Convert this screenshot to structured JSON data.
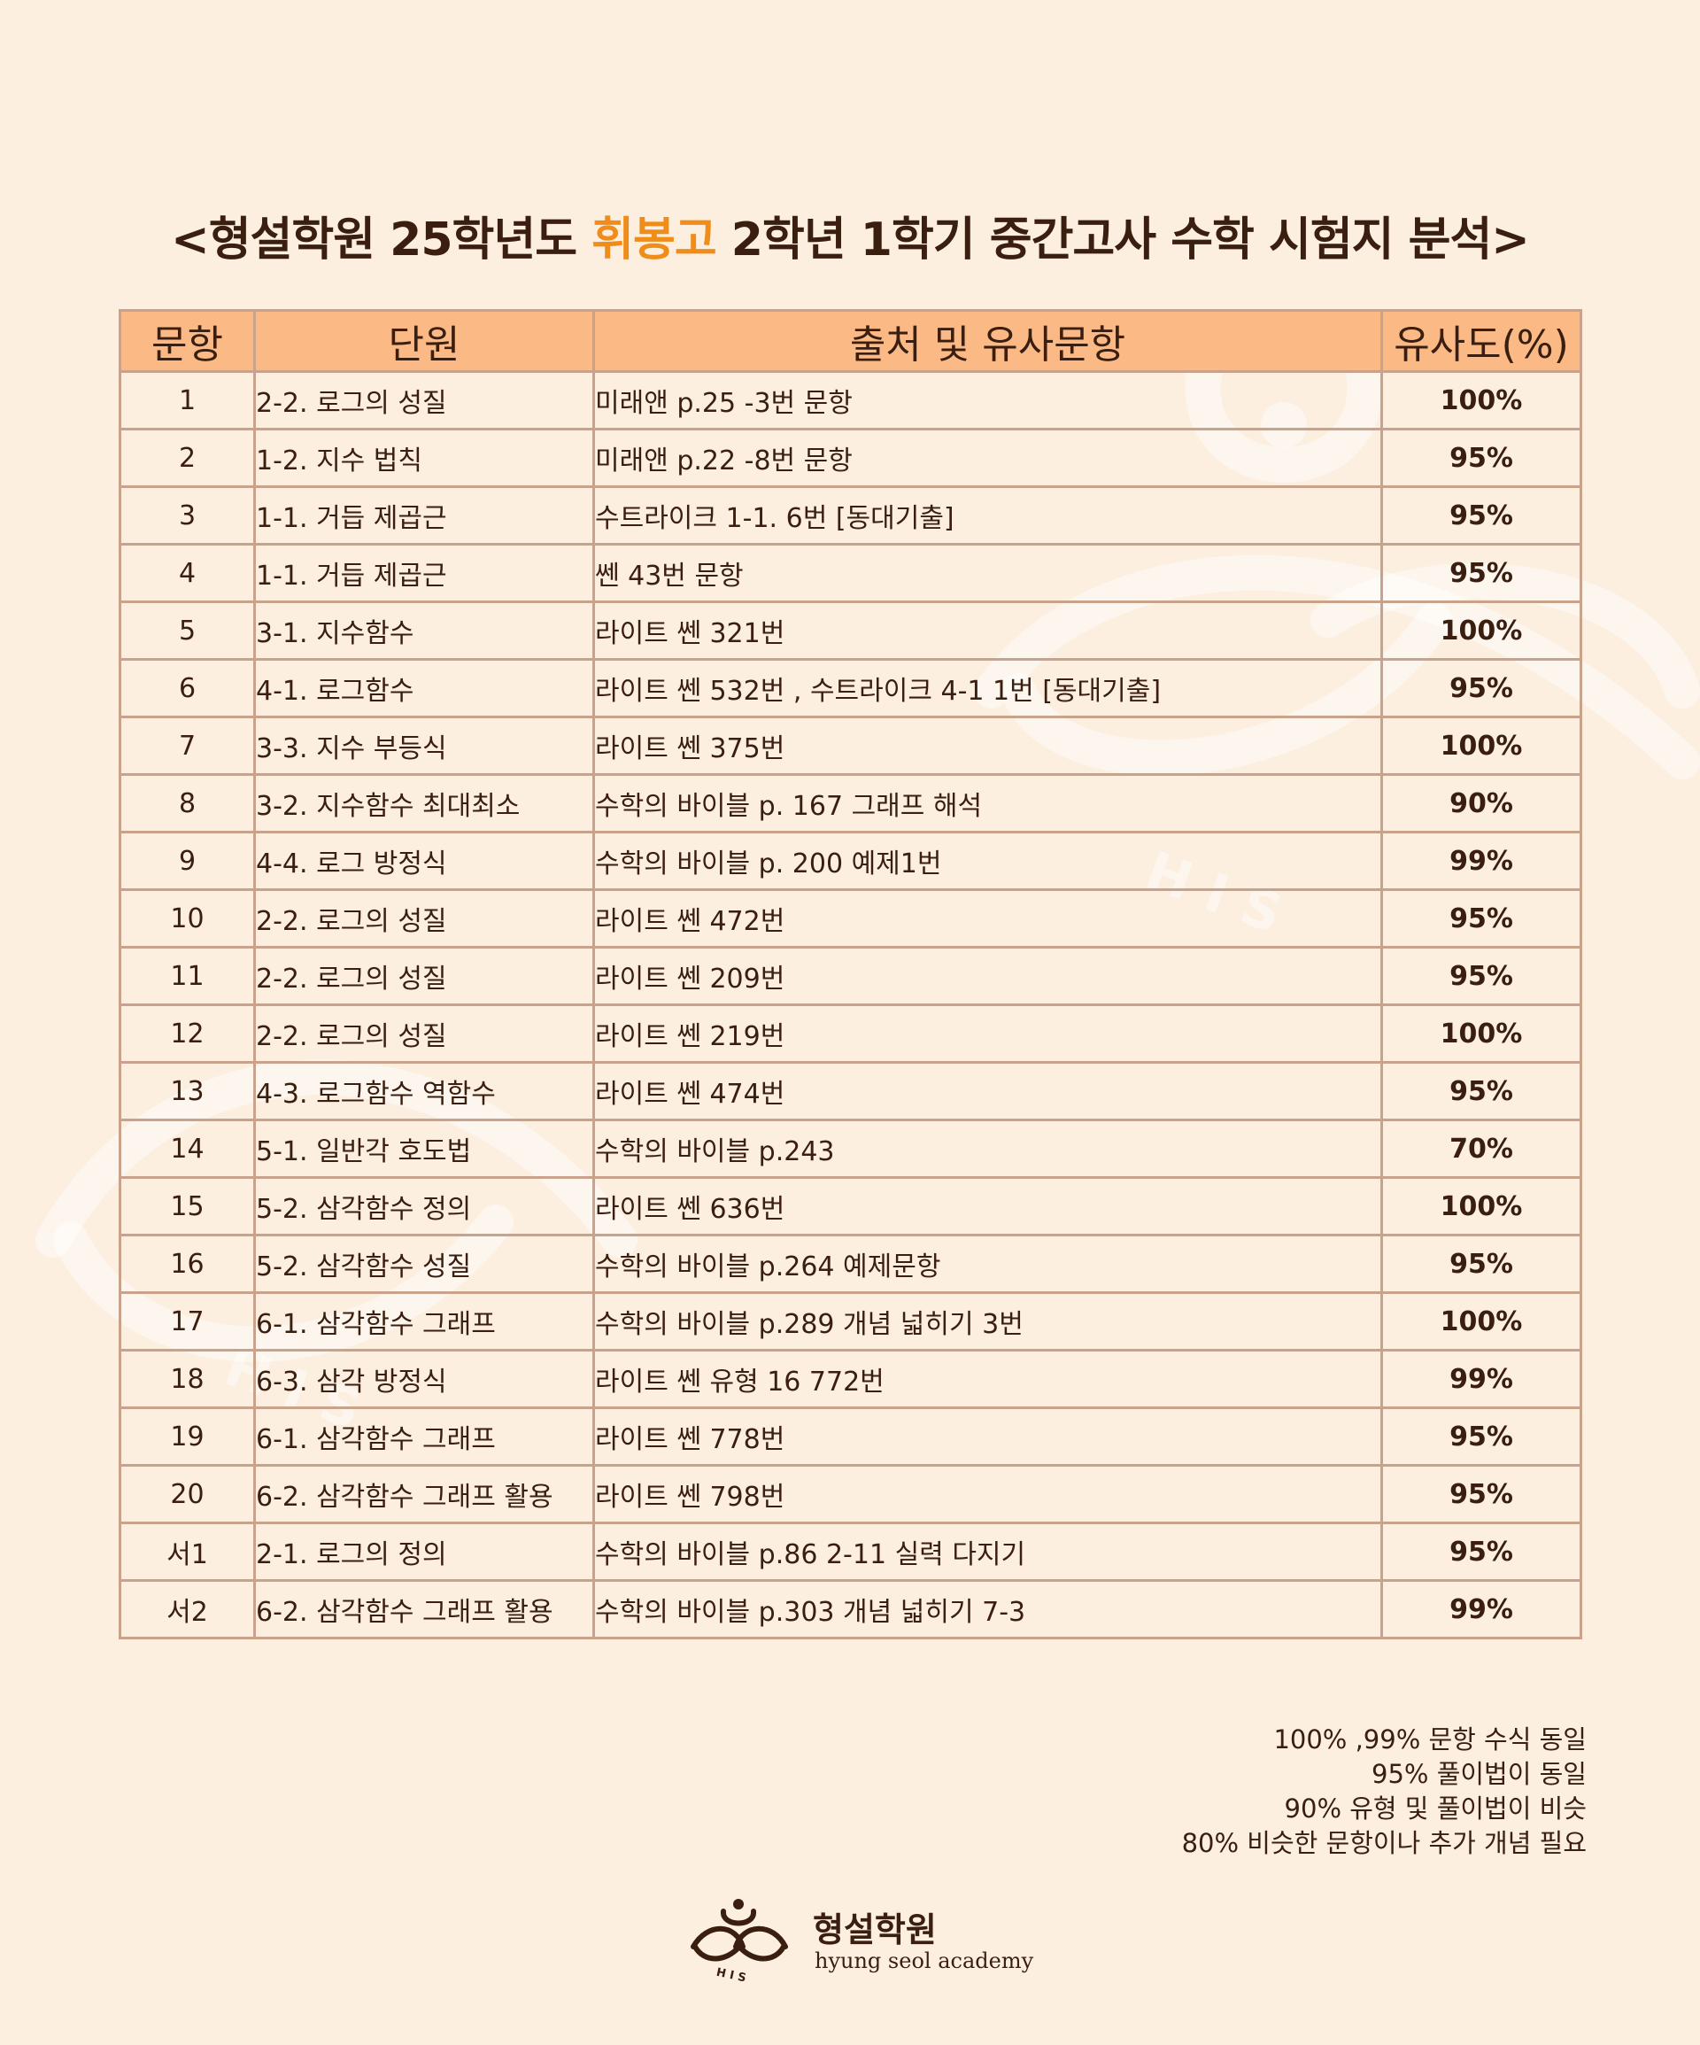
{
  "title": {
    "prefix": "<형설학원 25학년도 ",
    "highlight": "휘봉고",
    "suffix": " 2학년 1학기 중간고사 수학 시험지 분석>"
  },
  "table": {
    "headers": [
      "문항",
      "단원",
      "출처 및 유사문항",
      "유사도(%)"
    ],
    "rows": [
      {
        "num": "1",
        "unit": "2-2. 로그의 성질",
        "source": "미래앤 p.25 -3번 문항",
        "similarity": "100%"
      },
      {
        "num": "2",
        "unit": "1-2. 지수 법칙",
        "source": "미래앤 p.22 -8번 문항",
        "similarity": "95%"
      },
      {
        "num": "3",
        "unit": "1-1. 거듭 제곱근",
        "source": "수트라이크 1-1. 6번 [동대기출]",
        "similarity": "95%"
      },
      {
        "num": "4",
        "unit": "1-1. 거듭 제곱근",
        "source": "쎈 43번 문항",
        "similarity": "95%"
      },
      {
        "num": "5",
        "unit": "3-1. 지수함수",
        "source": "라이트 쎈 321번",
        "similarity": "100%"
      },
      {
        "num": "6",
        "unit": "4-1. 로그함수",
        "source": "라이트 쎈 532번 , 수트라이크 4-1 1번 [동대기출]",
        "similarity": "95%"
      },
      {
        "num": "7",
        "unit": "3-3. 지수 부등식",
        "source": "라이트 쎈 375번",
        "similarity": "100%"
      },
      {
        "num": "8",
        "unit": "3-2. 지수함수 최대최소",
        "source": "수학의 바이블 p. 167 그래프 해석",
        "similarity": "90%"
      },
      {
        "num": "9",
        "unit": "4-4. 로그 방정식",
        "source": "수학의 바이블 p. 200 예제1번",
        "similarity": "99%"
      },
      {
        "num": "10",
        "unit": "2-2. 로그의 성질",
        "source": "라이트 쎈 472번",
        "similarity": "95%"
      },
      {
        "num": "11",
        "unit": "2-2. 로그의 성질",
        "source": "라이트 쎈 209번",
        "similarity": "95%"
      },
      {
        "num": "12",
        "unit": "2-2. 로그의 성질",
        "source": "라이트 쎈 219번",
        "similarity": "100%"
      },
      {
        "num": "13",
        "unit": "4-3. 로그함수 역함수",
        "source": "라이트 쎈 474번",
        "similarity": "95%"
      },
      {
        "num": "14",
        "unit": "5-1. 일반각 호도법",
        "source": "수학의 바이블 p.243",
        "similarity": "70%"
      },
      {
        "num": "15",
        "unit": "5-2. 삼각함수 정의",
        "source": "라이트 쎈 636번",
        "similarity": "100%"
      },
      {
        "num": "16",
        "unit": "5-2. 삼각함수 성질",
        "source": "수학의 바이블 p.264 예제문항",
        "similarity": "95%"
      },
      {
        "num": "17",
        "unit": "6-1. 삼각함수 그래프",
        "source": "수학의 바이블 p.289 개념 넓히기 3번",
        "similarity": "100%"
      },
      {
        "num": "18",
        "unit": "6-3. 삼각 방정식",
        "source": "라이트 쎈 유형 16 772번",
        "similarity": "99%"
      },
      {
        "num": "19",
        "unit": "6-1. 삼각함수 그래프",
        "source": "라이트 쎈 778번",
        "similarity": "95%"
      },
      {
        "num": "20",
        "unit": "6-2. 삼각함수 그래프 활용",
        "source": "라이트 쎈 798번",
        "similarity": "95%"
      },
      {
        "num": "서1",
        "unit": "2-1. 로그의 정의",
        "source": "수학의 바이블 p.86  2-11 실력 다지기",
        "similarity": "95%"
      },
      {
        "num": "서2",
        "unit": "6-2. 삼각함수 그래프 활용",
        "source": "수학의 바이블 p.303 개념 넓히기 7-3",
        "similarity": "99%"
      }
    ]
  },
  "legend": [
    "100% ,99% 문항 수식 동일",
    "95% 풀이법이 동일",
    "90% 유형 및 풀이법이 비슷",
    "80% 비슷한 문항이나 추가 개념 필요"
  ],
  "brand": {
    "name_ko": "형설학원",
    "name_en": "hyung seol academy",
    "logo_icon": "academy-logo-icon"
  },
  "colors": {
    "background": "#fcefe0",
    "header": "#fbb985",
    "highlight": "#f08c1a",
    "similarity": "#e01818",
    "text": "#3a1e10"
  }
}
